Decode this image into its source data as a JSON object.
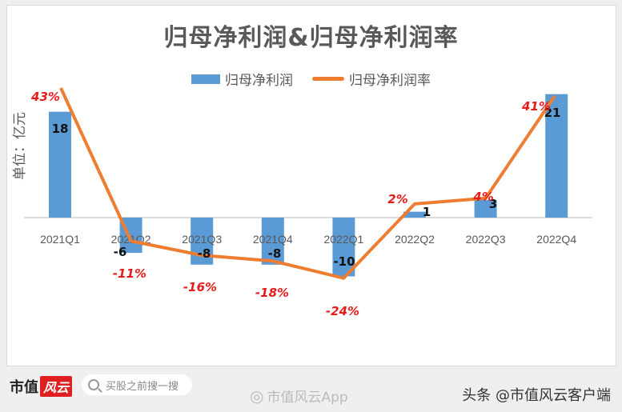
{
  "title": "归母净利润&归母净利润率",
  "legend": {
    "bar_label": "归母净利润",
    "line_label": "归母净利润率"
  },
  "y_axis_label": "单位：亿元",
  "colors": {
    "bar": "#5b9bd5",
    "line": "#ed7d31",
    "pct_label": "#e81b1b",
    "value_label": "#111111",
    "axis_text": "#595959"
  },
  "chart_data": {
    "type": "bar+line",
    "title": "归母净利润&归母净利润率",
    "xlabel": "",
    "ylabel": "单位：亿元",
    "categories": [
      "2021Q1",
      "2021Q2",
      "2021Q3",
      "2021Q4",
      "2022Q1",
      "2022Q2",
      "2022Q3",
      "2022Q4"
    ],
    "series": [
      {
        "name": "归母净利润",
        "type": "bar",
        "values": [
          18,
          -6,
          -8,
          -8,
          -10,
          1,
          3,
          21
        ],
        "labels": [
          "18",
          "-6",
          "-8",
          "-8",
          "-10",
          "1",
          "3",
          "21"
        ]
      },
      {
        "name": "归母净利润率",
        "type": "line",
        "values": [
          43,
          -11,
          -16,
          -18,
          -24,
          2,
          4,
          41
        ],
        "labels": [
          "43%",
          "-11%",
          "-16%",
          "-18%",
          "-24%",
          "2%",
          "4%",
          "41%"
        ]
      }
    ],
    "grid": false,
    "legend_position": "top"
  },
  "footer": {
    "logo_text": "市值",
    "logo_badge": "风云",
    "search_placeholder": "买股之前搜一搜",
    "weibo_text": "市值风云App",
    "toutiao_text": "头条 @市值风云客户端"
  }
}
